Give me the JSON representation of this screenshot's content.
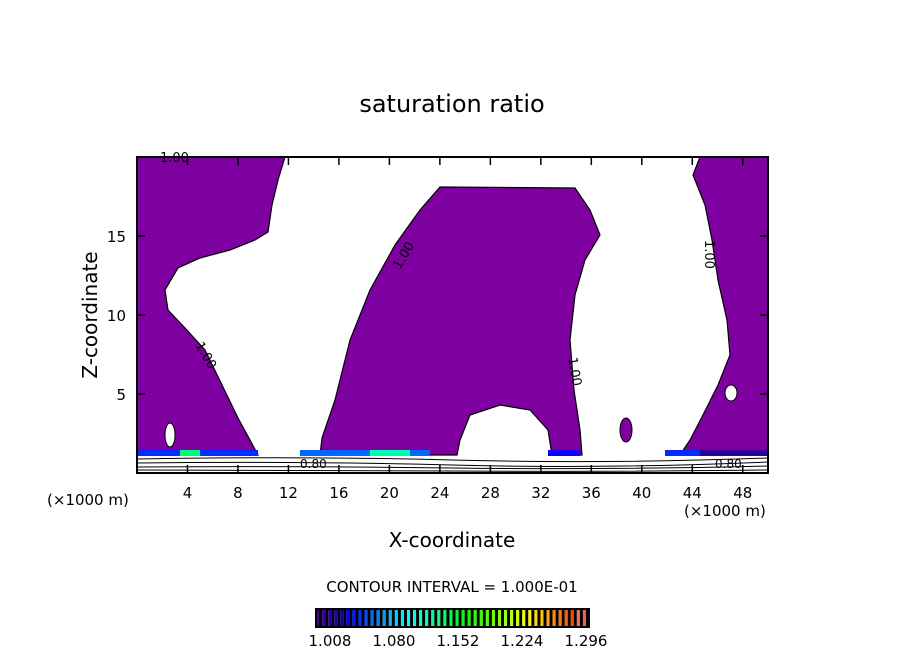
{
  "chart_data": {
    "type": "contour",
    "title": "saturation ratio",
    "xlabel": "X-coordinate",
    "ylabel": "Z-coordinate",
    "x_unit": "(×1000 m)",
    "y_unit": "(×1000 m)",
    "xlim": [
      0,
      50
    ],
    "ylim": [
      0,
      20
    ],
    "x_ticks": [
      4,
      8,
      12,
      16,
      20,
      24,
      28,
      32,
      36,
      40,
      44,
      48
    ],
    "y_ticks": [
      5,
      10,
      15
    ],
    "contour_labels": [
      "1.00",
      "0.80"
    ],
    "contour_interval": "CONTOUR INTERVAL = 1.000E-01",
    "fill_color": "#7f00a0",
    "colorbar": {
      "labels": [
        "1.008",
        "1.080",
        "1.152",
        "1.224",
        "1.296"
      ],
      "min": 1.0,
      "max": 1.33
    }
  }
}
